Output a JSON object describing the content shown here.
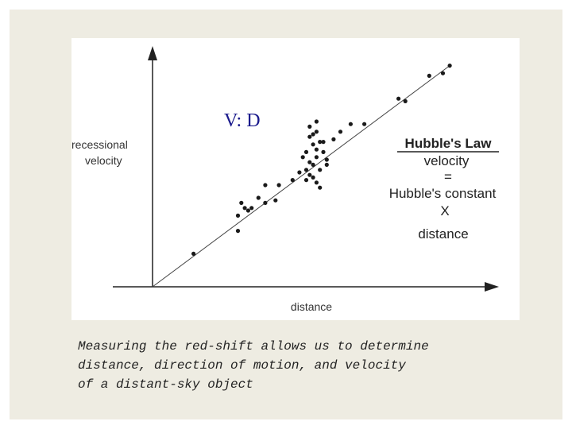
{
  "chart_data": {
    "type": "scatter",
    "title": "V: D",
    "xlabel": "distance",
    "ylabel": [
      "recessional",
      "velocity"
    ],
    "grid": false,
    "legend": "none",
    "xlim": [
      0,
      100
    ],
    "ylim": [
      0,
      100
    ],
    "annotation": {
      "title": "Hubble's Law",
      "lines": [
        "velocity",
        "=",
        "Hubble's constant",
        "X",
        "distance"
      ]
    },
    "trendline": {
      "x": [
        0,
        87
      ],
      "y": [
        0,
        87
      ]
    },
    "points": [
      {
        "x": 12,
        "y": 13
      },
      {
        "x": 25,
        "y": 22
      },
      {
        "x": 25,
        "y": 28
      },
      {
        "x": 26,
        "y": 33
      },
      {
        "x": 27,
        "y": 31
      },
      {
        "x": 28,
        "y": 30
      },
      {
        "x": 29,
        "y": 31
      },
      {
        "x": 31,
        "y": 35
      },
      {
        "x": 33,
        "y": 33
      },
      {
        "x": 33,
        "y": 40
      },
      {
        "x": 36,
        "y": 34
      },
      {
        "x": 37,
        "y": 40
      },
      {
        "x": 41,
        "y": 42
      },
      {
        "x": 43,
        "y": 45
      },
      {
        "x": 44,
        "y": 51
      },
      {
        "x": 45,
        "y": 46
      },
      {
        "x": 45,
        "y": 53
      },
      {
        "x": 45,
        "y": 42
      },
      {
        "x": 46,
        "y": 49
      },
      {
        "x": 46,
        "y": 59
      },
      {
        "x": 46,
        "y": 63
      },
      {
        "x": 46,
        "y": 44
      },
      {
        "x": 47,
        "y": 56
      },
      {
        "x": 47,
        "y": 60
      },
      {
        "x": 47,
        "y": 48
      },
      {
        "x": 47,
        "y": 43
      },
      {
        "x": 48,
        "y": 54
      },
      {
        "x": 48,
        "y": 51
      },
      {
        "x": 48,
        "y": 65
      },
      {
        "x": 48,
        "y": 41
      },
      {
        "x": 48,
        "y": 61
      },
      {
        "x": 49,
        "y": 57
      },
      {
        "x": 49,
        "y": 46
      },
      {
        "x": 49,
        "y": 39
      },
      {
        "x": 50,
        "y": 57
      },
      {
        "x": 50,
        "y": 53
      },
      {
        "x": 51,
        "y": 50
      },
      {
        "x": 51,
        "y": 48
      },
      {
        "x": 53,
        "y": 58
      },
      {
        "x": 55,
        "y": 61
      },
      {
        "x": 58,
        "y": 64
      },
      {
        "x": 62,
        "y": 64
      },
      {
        "x": 72,
        "y": 74
      },
      {
        "x": 74,
        "y": 73
      },
      {
        "x": 81,
        "y": 83
      },
      {
        "x": 85,
        "y": 84
      },
      {
        "x": 87,
        "y": 87
      }
    ]
  },
  "caption": [
    "Measuring the red-shift allows us to determine",
    "distance, direction of motion, and velocity",
    "of a distant-sky object"
  ]
}
